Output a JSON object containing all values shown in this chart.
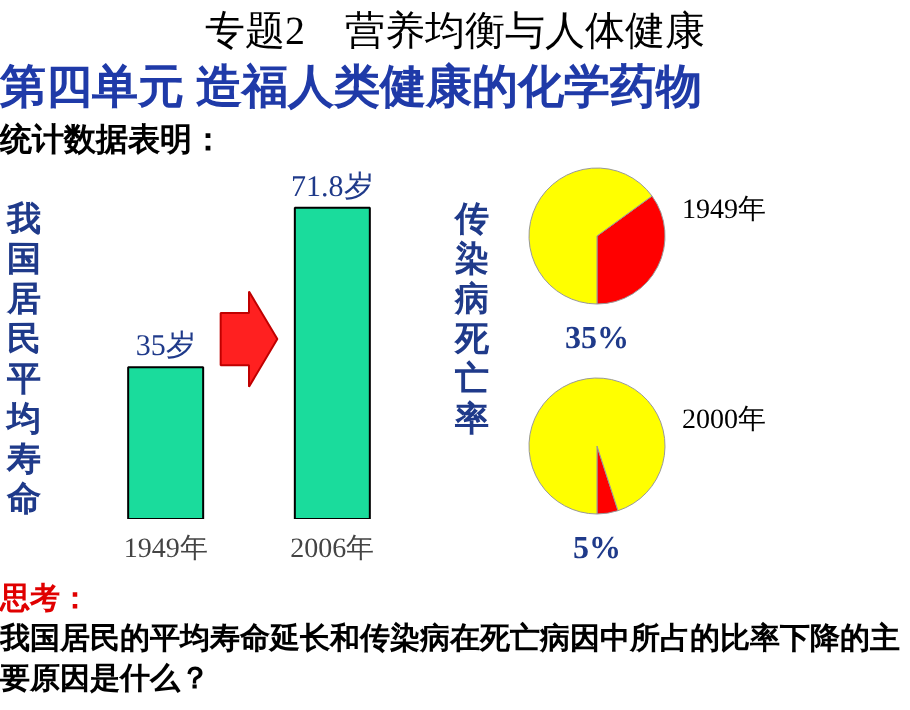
{
  "chart_data": [
    {
      "type": "bar",
      "title": "专题2　营养均衡与人体健康",
      "subtitle": "第四单元  造福人类健康的化学药物",
      "ylabel": "我国居民平均寿命",
      "categories": [
        "1949年",
        "2006年"
      ],
      "values": [
        35,
        71.8
      ],
      "value_labels": [
        "35岁",
        "71.8岁"
      ],
      "color": "#1adc9c",
      "annotations": [
        "统计数据表明：",
        "思考：",
        "我国居民的平均寿命延长和传染病在死亡病因中所占的比率下降的主要原因是什么？"
      ]
    },
    {
      "type": "pie",
      "title": "1949年",
      "ylabel": "传染病死亡率",
      "categories": [
        null,
        null
      ],
      "values": [
        35,
        65
      ],
      "colors": [
        "#ff0000",
        "#ffff00"
      ],
      "value_labels": [
        "35%",
        null
      ]
    },
    {
      "type": "pie",
      "title": "2000年",
      "categories": [
        null,
        null
      ],
      "values": [
        5,
        95
      ],
      "colors": [
        "#ff0000",
        "#ffff00"
      ],
      "value_labels": [
        "5%",
        null
      ]
    }
  ]
}
